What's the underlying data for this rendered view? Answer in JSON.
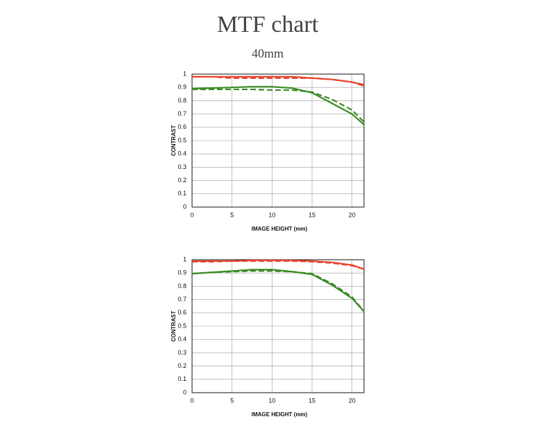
{
  "title": "MTF chart",
  "subtitle": "40mm",
  "chart_data": [
    {
      "type": "line",
      "x_label": "IMAGE HEIGHT (mm)",
      "y_label": "CONTRAST",
      "x": [
        0,
        2.5,
        5,
        7.5,
        10,
        12.5,
        15,
        17.5,
        20,
        21.5
      ],
      "xlim": [
        0,
        21.5
      ],
      "ylim": [
        0,
        1
      ],
      "xticks": [
        0,
        5,
        10,
        15,
        20
      ],
      "yticks": [
        0,
        0.1,
        0.2,
        0.3,
        0.4,
        0.5,
        0.6,
        0.7,
        0.8,
        0.9,
        1
      ],
      "grid": true,
      "series": [
        {
          "color": "#e8432c",
          "dashed": false,
          "values": [
            0.98,
            0.98,
            0.98,
            0.98,
            0.98,
            0.98,
            0.97,
            0.96,
            0.94,
            0.92
          ]
        },
        {
          "color": "#e8432c",
          "dashed": true,
          "values": [
            0.98,
            0.98,
            0.97,
            0.97,
            0.97,
            0.97,
            0.97,
            0.96,
            0.94,
            0.91
          ]
        },
        {
          "color": "#3a8a24",
          "dashed": false,
          "values": [
            0.89,
            0.895,
            0.9,
            0.905,
            0.905,
            0.895,
            0.86,
            0.78,
            0.7,
            0.62
          ]
        },
        {
          "color": "#3a8a24",
          "dashed": true,
          "values": [
            0.885,
            0.885,
            0.885,
            0.885,
            0.88,
            0.88,
            0.865,
            0.81,
            0.73,
            0.64
          ]
        }
      ]
    },
    {
      "type": "line",
      "x_label": "IMAGE HEIGHT (mm)",
      "y_label": "CONTRAST",
      "x": [
        0,
        2.5,
        5,
        7.5,
        10,
        12.5,
        15,
        17.5,
        20,
        21.5
      ],
      "xlim": [
        0,
        21.5
      ],
      "ylim": [
        0,
        1
      ],
      "xticks": [
        0,
        5,
        10,
        15,
        20
      ],
      "yticks": [
        0,
        0.1,
        0.2,
        0.3,
        0.4,
        0.5,
        0.6,
        0.7,
        0.8,
        0.9,
        1
      ],
      "grid": true,
      "series": [
        {
          "color": "#e8432c",
          "dashed": false,
          "values": [
            0.99,
            0.99,
            0.99,
            0.995,
            0.995,
            0.995,
            0.99,
            0.98,
            0.96,
            0.93
          ]
        },
        {
          "color": "#e8432c",
          "dashed": true,
          "values": [
            0.985,
            0.985,
            0.99,
            0.99,
            0.99,
            0.99,
            0.985,
            0.975,
            0.955,
            0.93
          ]
        },
        {
          "color": "#3a8a24",
          "dashed": false,
          "values": [
            0.895,
            0.905,
            0.915,
            0.925,
            0.925,
            0.91,
            0.89,
            0.81,
            0.71,
            0.61
          ]
        },
        {
          "color": "#3a8a24",
          "dashed": true,
          "values": [
            0.895,
            0.905,
            0.91,
            0.915,
            0.915,
            0.91,
            0.895,
            0.82,
            0.72,
            0.61
          ]
        }
      ]
    }
  ]
}
